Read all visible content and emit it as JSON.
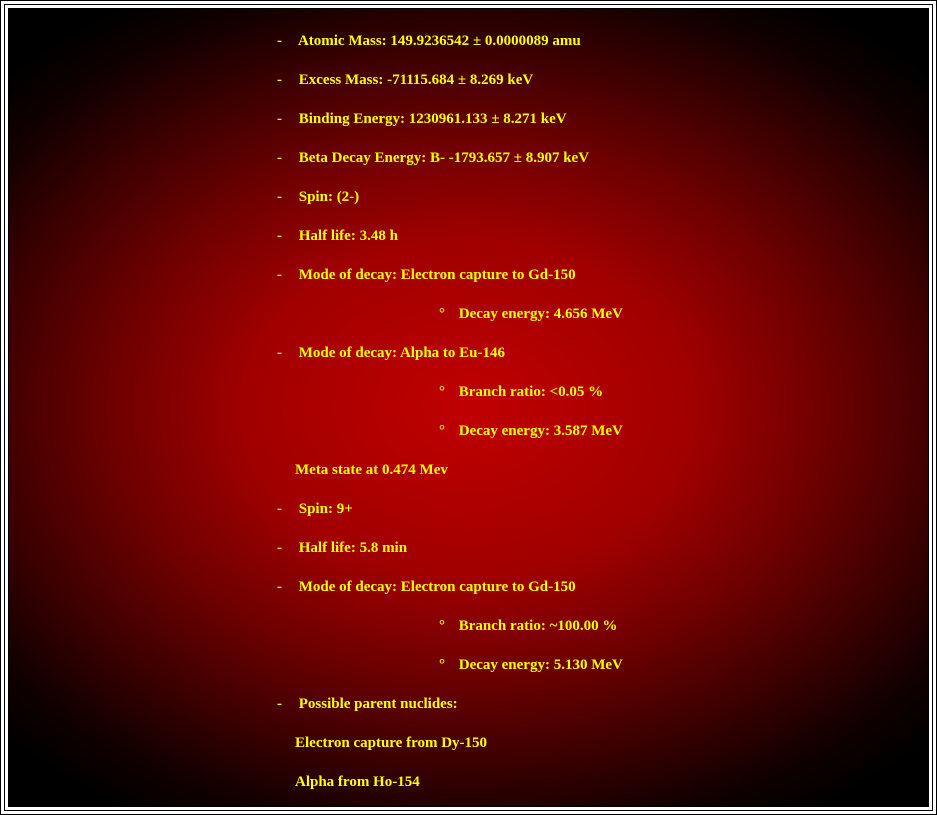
{
  "colors": {
    "text": "#ffff00",
    "bg_center": "#c00000",
    "bg_edge": "#000000",
    "border": "#000000"
  },
  "typography": {
    "font_family": "Times New Roman",
    "font_size_pt": 11,
    "font_weight": "bold"
  },
  "bullets": {
    "level1": "-",
    "level2": "°"
  },
  "lines": {
    "atomic_mass": "Atomic Mass: 149.9236542 ± 0.0000089 amu",
    "excess_mass": "Excess Mass: -71115.684 ± 8.269 keV",
    "binding_energy": "Binding Energy: 1230961.133 ± 8.271 keV",
    "beta_decay": "Beta Decay Energy: B- -1793.657 ± 8.907 keV",
    "spin1": "Spin: (2-)",
    "half_life1": "Half life: 3.48 h",
    "mode1": "Mode of decay: Electron capture to Gd-150",
    "mode1_sub1": "Decay energy: 4.656 MeV",
    "mode2": "Mode of decay: Alpha to Eu-146",
    "mode2_sub1": "Branch ratio: <0.05 %",
    "mode2_sub2": "Decay energy: 3.587 MeV",
    "meta_header": "Meta state at 0.474 Mev",
    "spin2": "Spin: 9+",
    "half_life2": "Half life: 5.8 min",
    "mode3": "Mode of decay: Electron capture to Gd-150",
    "mode3_sub1": "Branch ratio: ~100.00 %",
    "mode3_sub2": "Decay energy: 5.130 MeV",
    "parents_header": "Possible parent nuclides:",
    "parent1": "Electron capture from Dy-150",
    "parent2": "Alpha from Ho-154"
  }
}
